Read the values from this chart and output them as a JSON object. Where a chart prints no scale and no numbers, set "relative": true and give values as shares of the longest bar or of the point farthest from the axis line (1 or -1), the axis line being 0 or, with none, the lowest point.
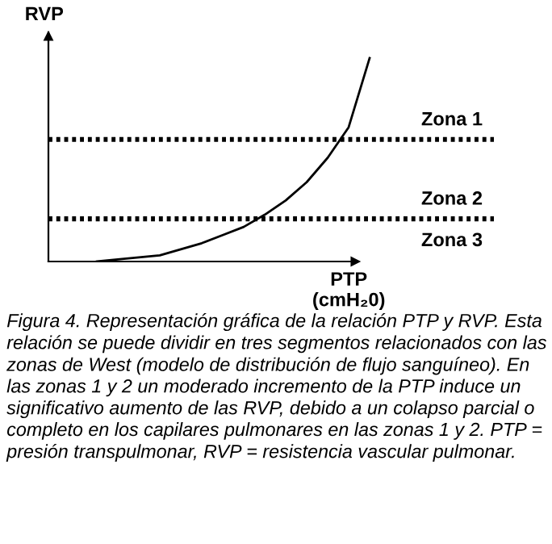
{
  "chart_data": {
    "type": "line",
    "relative": true,
    "ylabel": "RVP",
    "xlabel": "PTP\n(cmH₂0)",
    "categories": [
      null,
      null,
      null,
      null,
      null,
      null,
      null,
      null,
      null,
      null,
      null,
      null,
      null,
      null
    ],
    "series": [
      {
        "color": "#000000",
        "values": [
          0,
          0.01,
          0.02,
          0.03,
          0.06,
          0.09,
          0.13,
          0.17,
          0.23,
          0.3,
          0.39,
          0.51,
          0.66,
          1.0
        ]
      }
    ],
    "line_style": "solid",
    "legend": false,
    "ref_lines": [
      {
        "axis": "y",
        "value": 0.6,
        "label": "Zona 1",
        "color": "#000000",
        "line_style": "dotted"
      },
      {
        "axis": "y",
        "value": 0.21,
        "label": "Zona 2",
        "color": "#000000",
        "line_style": "dotted"
      }
    ],
    "annotations": [
      "Zona 3",
      "Figura 4. Representación gráfica de la relación PTP y RVP. Esta relación se puede dividir en tres segmentos relacionados con las zonas de West (modelo de distribución de flujo sanguíneo). En las zonas 1 y 2 un moderado incremento de la PTP induce un significativo aumento de las RVP, debido a un colapso parcial o completo en los capilares pulmonares en las zonas 1 y 2. PTP = presión transpulmonar, RVP = resistencia vascular pulmonar."
    ]
  }
}
